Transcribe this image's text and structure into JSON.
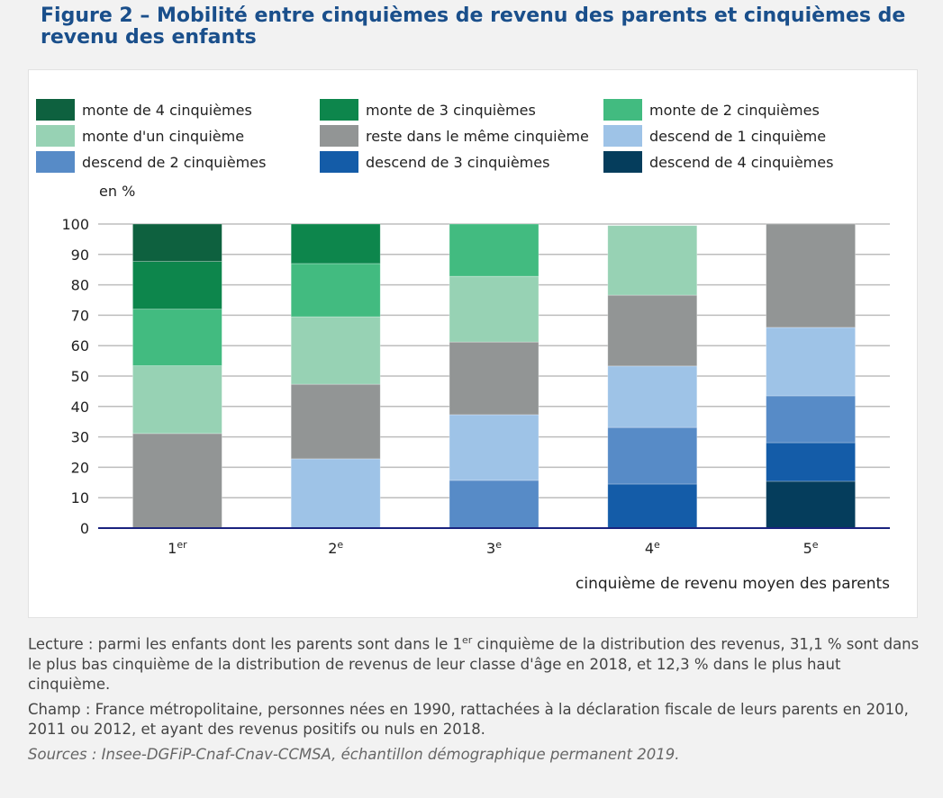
{
  "title": "Figure 2 – Mobilité entre cinquièmes de revenu des parents et cinquièmes de revenu des enfants",
  "chart_data": {
    "type": "bar",
    "stacked": true,
    "ylabel": "en %",
    "xlabel": "cinquième de revenu moyen des parents",
    "ylim": [
      0,
      100
    ],
    "yticks": [
      0,
      10,
      20,
      30,
      40,
      50,
      60,
      70,
      80,
      90,
      100
    ],
    "grid": true,
    "legend_placement": "top",
    "categories": [
      {
        "base": "1",
        "sup": "er"
      },
      {
        "base": "2",
        "sup": "e"
      },
      {
        "base": "3",
        "sup": "e"
      },
      {
        "base": "4",
        "sup": "e"
      },
      {
        "base": "5",
        "sup": "e"
      }
    ],
    "series": [
      {
        "name": "descend de 4 cinquièmes",
        "color": "#053d5c",
        "values": [
          0,
          0,
          0,
          0,
          15.4
        ]
      },
      {
        "name": "descend de 3 cinquièmes",
        "color": "#145ca8",
        "values": [
          0,
          0,
          0,
          14.5,
          12.7
        ]
      },
      {
        "name": "descend de 2 cinquièmes",
        "color": "#578bc7",
        "values": [
          0,
          0,
          15.7,
          18.6,
          15.4
        ]
      },
      {
        "name": "descend de 1 cinquième",
        "color": "#9ec3e7",
        "values": [
          0,
          22.8,
          21.6,
          20.2,
          22.5
        ]
      },
      {
        "name": "reste dans le même cinquième",
        "color": "#929595",
        "values": [
          31.1,
          24.5,
          23.9,
          23.3,
          34.0
        ]
      },
      {
        "name": "monte d'un cinquième",
        "color": "#97d2b4",
        "values": [
          22.3,
          22.2,
          21.6,
          22.9,
          0
        ]
      },
      {
        "name": "monte de 2 cinquièmes",
        "color": "#42bb80",
        "values": [
          18.6,
          17.5,
          17.2,
          0,
          0
        ]
      },
      {
        "name": "monte de 3 cinquièmes",
        "color": "#0d864c",
        "values": [
          15.7,
          13.0,
          0,
          0,
          0
        ]
      },
      {
        "name": "monte de 4 cinquièmes",
        "color": "#0e613f",
        "values": [
          12.3,
          0,
          0,
          0,
          0
        ]
      }
    ],
    "legend_order": [
      8,
      7,
      6,
      5,
      4,
      3,
      2,
      1,
      0
    ]
  },
  "notes": {
    "lecture_before": "Lecture : parmi les enfants dont les parents sont dans le 1",
    "lecture_sup": "er",
    "lecture_after": " cinquième de la distribution des revenus, 31,1 % sont dans le plus bas cinquième de la distribution de revenus de leur classe d'âge en 2018, et 12,3 % dans le plus haut cinquième.",
    "champ": "Champ : France métropolitaine, personnes nées en 1990, rattachées à la déclaration fiscale de leurs parents en 2010, 2011 ou 2012, et ayant des revenus positifs ou nuls en 2018.",
    "sources": "Sources : Insee-DGFiP-Cnaf-Cnav-CCMSA, échantillon démographique permanent 2019."
  }
}
